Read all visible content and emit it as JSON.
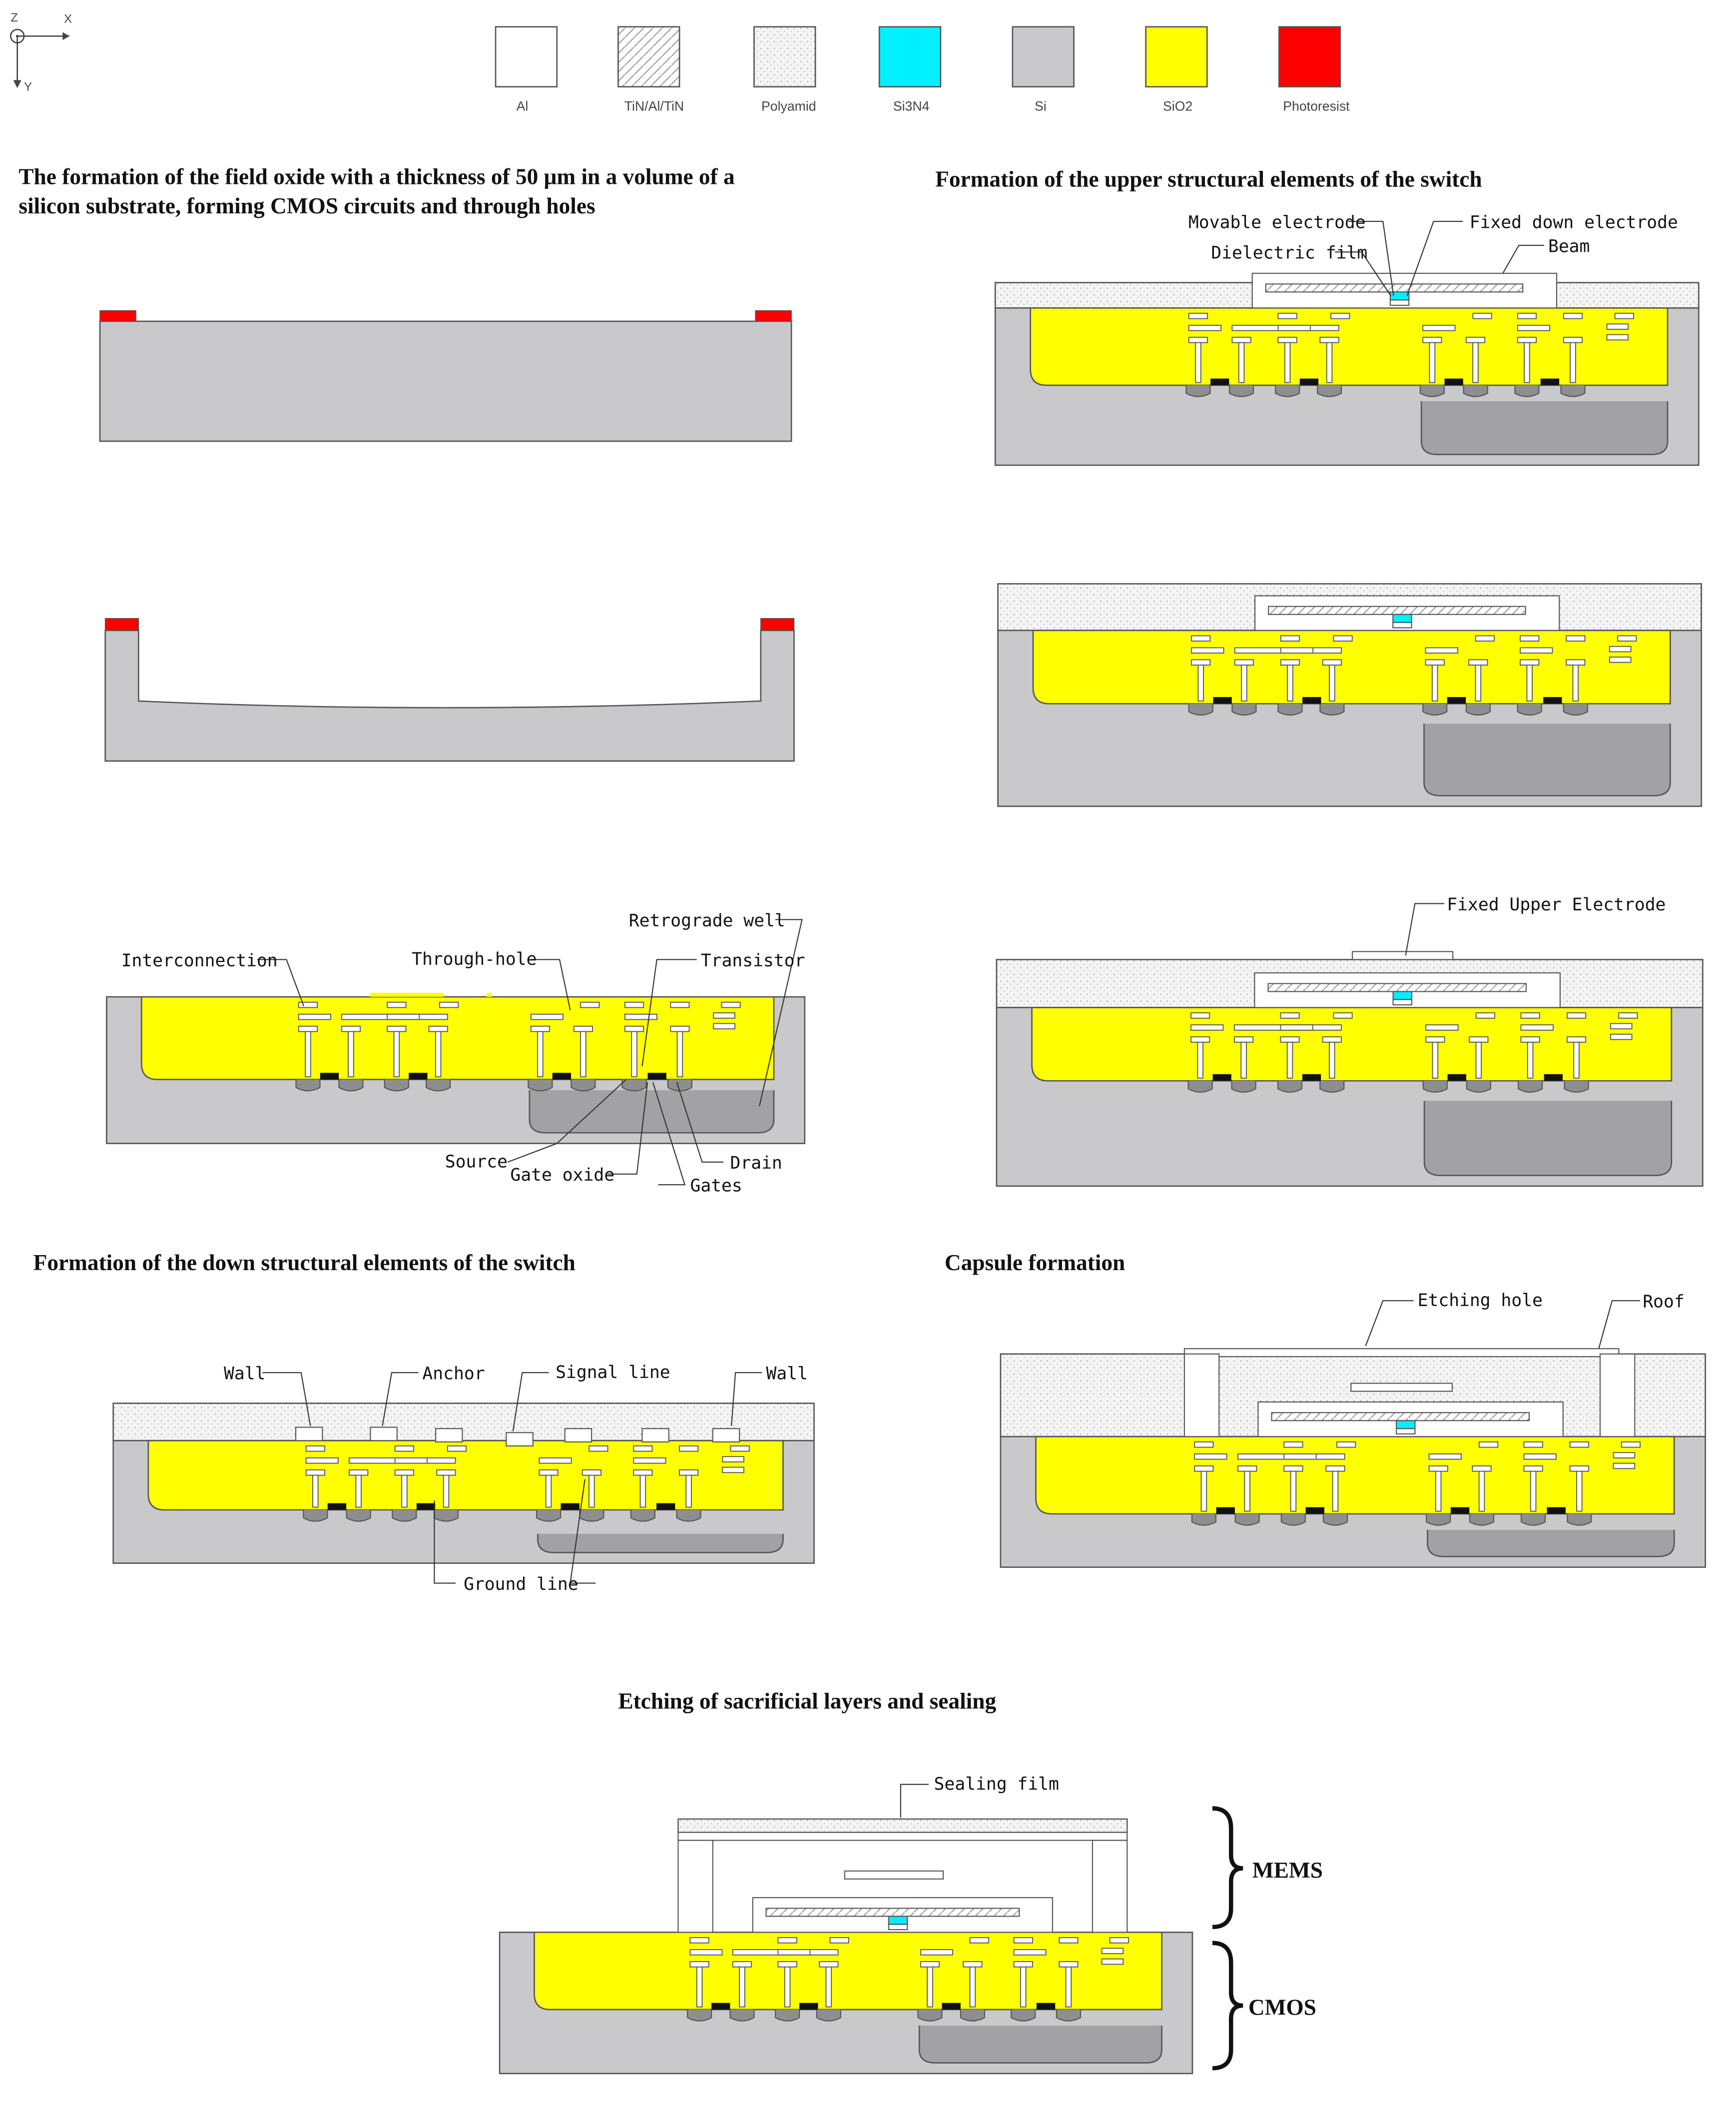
{
  "axes": {
    "z": "Z",
    "x": "X",
    "y": "Y"
  },
  "legend": [
    {
      "label": "Al",
      "material": "al"
    },
    {
      "label": "TiN/Al/TiN",
      "material": "tin"
    },
    {
      "label": "Polyamid",
      "material": "poly"
    },
    {
      "label": "Si3N4",
      "material": "sin"
    },
    {
      "label": "Si",
      "material": "si"
    },
    {
      "label": "SiO2",
      "material": "sio2"
    },
    {
      "label": "Photoresist",
      "material": "pr"
    }
  ],
  "colors": {
    "al": "#ffffff",
    "tin": "#ffffff",
    "poly": "#f4f4f4",
    "sin": "#00f0ff",
    "si": "#c9c9cb",
    "si_dark": "#a2a2a4",
    "sio2": "#ffff00",
    "pr": "#ff0000",
    "line": "#555555",
    "text": "#111111"
  },
  "headings": {
    "field_oxide": [
      "The formation of the field oxide with a thickness of 50 μm in a volume of a",
      "silicon substrate, forming CMOS circuits and through holes"
    ],
    "upper": "Formation of the upper structural elements of the switch",
    "down": "Formation of the down structural elements of the switch",
    "capsule": "Capsule formation",
    "etching": "Etching of sacrificial layers and sealing"
  },
  "labels": {
    "interconnection": "Interconnection",
    "through_hole": "Through-hole",
    "retrograde_well": "Retrograde well",
    "transistor": "Transistor",
    "source": "Source",
    "gate_oxide": "Gate oxide",
    "drain": "Drain",
    "gates": "Gates",
    "movable_electrode": "Movable electrode",
    "dielectric_film": "Dielectric film",
    "fixed_down_electrode": "Fixed down electrode",
    "beam": "Beam",
    "fixed_upper_electrode": "Fixed Upper Electrode",
    "wall": "Wall",
    "anchor": "Anchor",
    "signal_line": "Signal line",
    "ground_line": "Ground line",
    "etching_hole": "Etching hole",
    "roof": "Roof",
    "sealing_film": "Sealing film",
    "mems": "MEMS",
    "cmos": "CMOS"
  }
}
